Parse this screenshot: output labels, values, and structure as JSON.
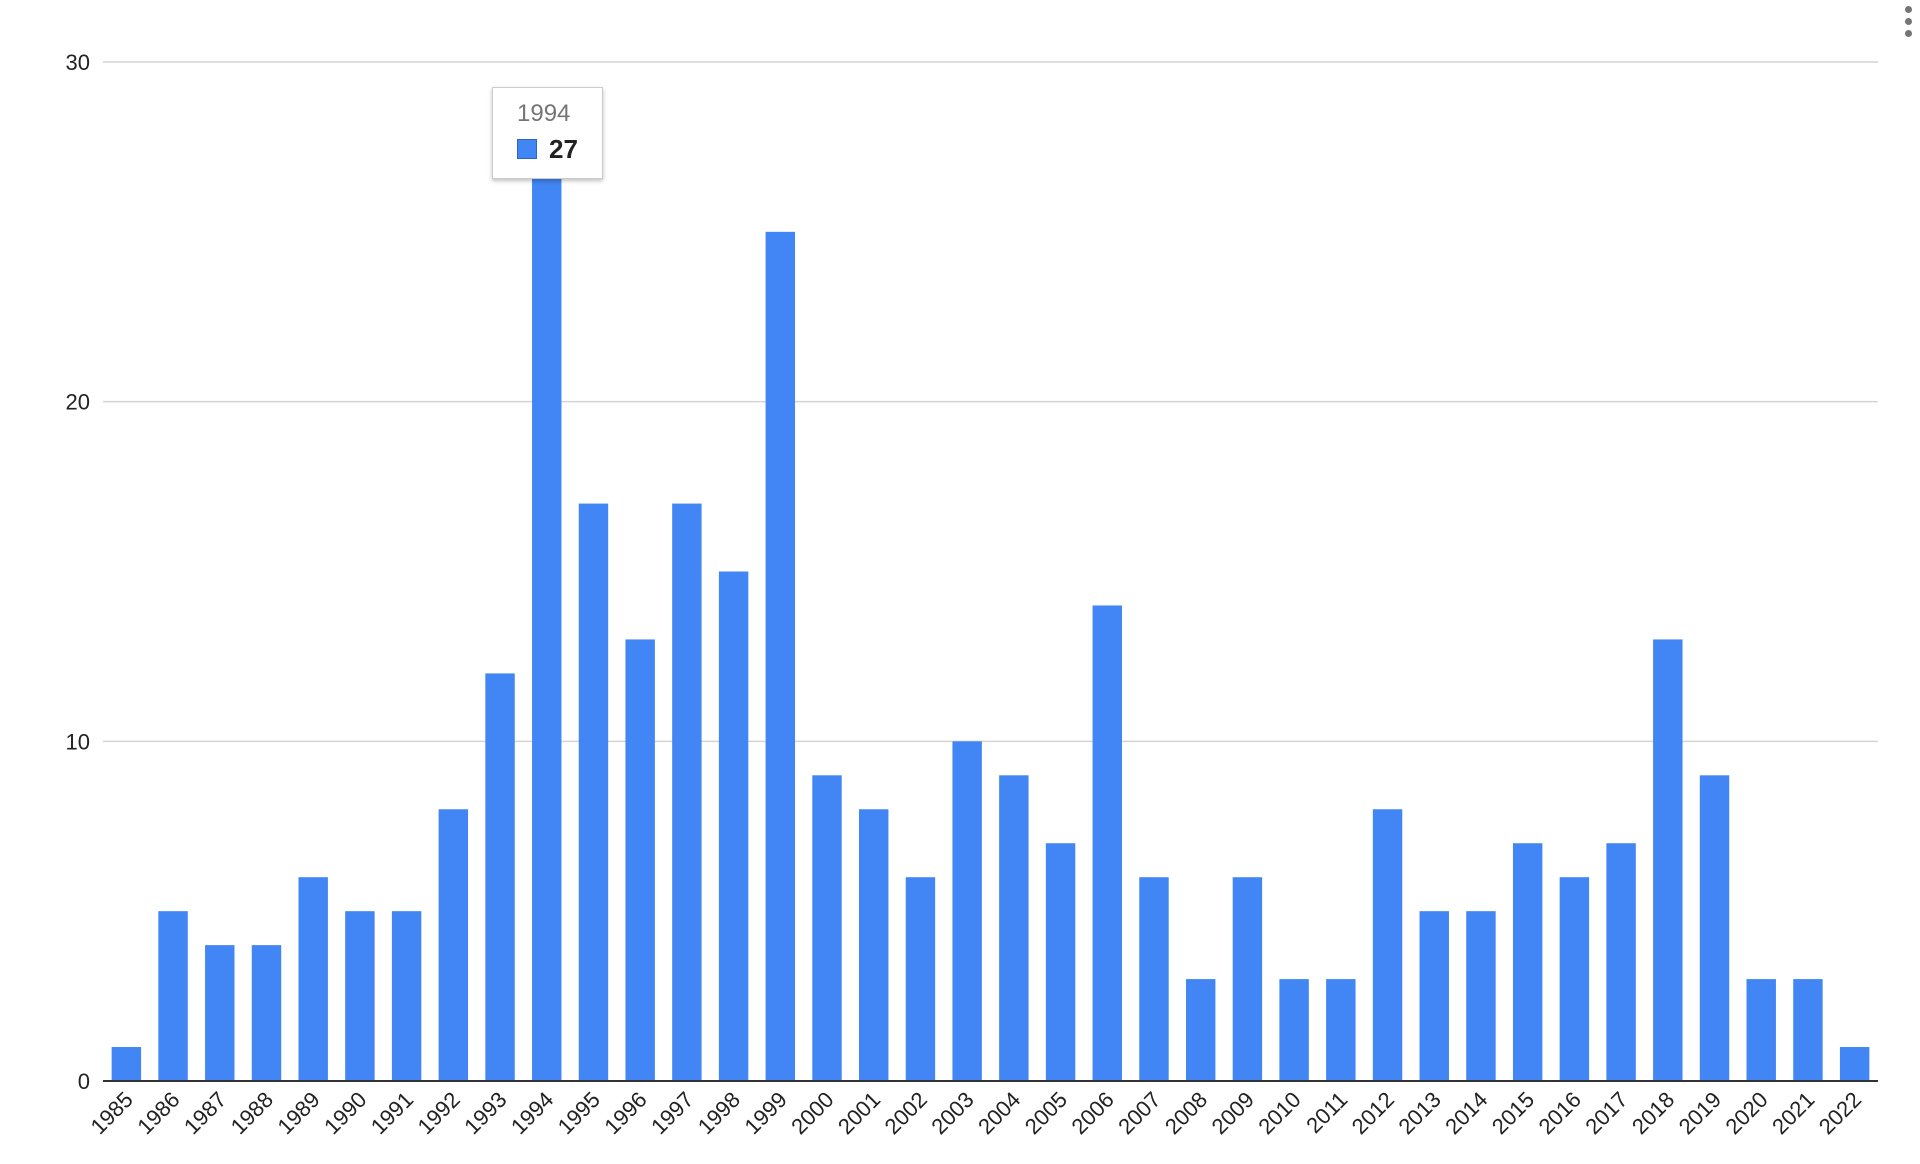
{
  "chart_data": {
    "type": "bar",
    "categories": [
      "1985",
      "1986",
      "1987",
      "1988",
      "1989",
      "1990",
      "1991",
      "1992",
      "1993",
      "1994",
      "1995",
      "1996",
      "1997",
      "1998",
      "1999",
      "2000",
      "2001",
      "2002",
      "2003",
      "2004",
      "2005",
      "2006",
      "2007",
      "2008",
      "2009",
      "2010",
      "2011",
      "2012",
      "2013",
      "2014",
      "2015",
      "2016",
      "2017",
      "2018",
      "2019",
      "2020",
      "2021",
      "2022"
    ],
    "values": [
      1,
      5,
      4,
      4,
      6,
      5,
      5,
      8,
      12,
      27,
      17,
      13,
      17,
      15,
      25,
      9,
      8,
      6,
      10,
      9,
      7,
      14,
      6,
      3,
      6,
      3,
      3,
      8,
      5,
      5,
      7,
      6,
      7,
      13,
      9,
      3,
      3,
      1
    ],
    "ylim": [
      0,
      30
    ],
    "yticks": [
      "0",
      "10",
      "20",
      "30"
    ],
    "grid": true,
    "bar_color": "#4285f4",
    "title": "",
    "xlabel": "",
    "ylabel": ""
  },
  "tooltip": {
    "category": "1994",
    "value": "27"
  },
  "menu": {
    "icon": "more-vert-icon"
  }
}
